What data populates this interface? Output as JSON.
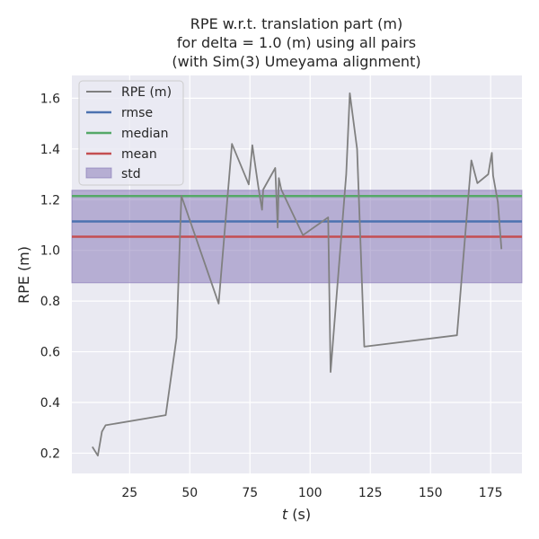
{
  "chart_data": {
    "type": "line",
    "title": [
      "RPE w.r.t. translation part (m)",
      "for delta = 1.0 (m) using all pairs",
      "(with Sim(3) Umeyama alignment)"
    ],
    "xlabel": "t (s)",
    "xlabel_var": "t",
    "xlabel_unit": " (s)",
    "ylabel": "RPE (m)",
    "xlim": [
      1,
      188
    ],
    "ylim": [
      0.12,
      1.69
    ],
    "xticks": [
      25,
      50,
      75,
      100,
      125,
      150,
      175
    ],
    "yticks": [
      0.2,
      0.4,
      0.6,
      0.8,
      1.0,
      1.2,
      1.4,
      1.6
    ],
    "ytick_labels": [
      "0.2",
      "0.4",
      "0.6",
      "0.8",
      "1.0",
      "1.2",
      "1.4",
      "1.6"
    ],
    "grid": true,
    "legend_position": "top-left",
    "series": [
      {
        "name": "RPE (m)",
        "color": "#808080",
        "x": [
          9.5,
          11.8,
          13.5,
          15,
          40,
          44.5,
          46.5,
          62,
          67.5,
          74.5,
          76,
          78.5,
          80,
          80.5,
          85.5,
          86.5,
          87,
          88,
          97,
          107.5,
          108.5,
          115,
          116.5,
          119.5,
          122.5,
          161,
          167,
          169.5,
          174,
          175.5,
          176,
          178,
          179.5
        ],
        "y": [
          0.225,
          0.19,
          0.285,
          0.31,
          0.35,
          0.655,
          1.215,
          0.79,
          1.42,
          1.26,
          1.415,
          1.25,
          1.16,
          1.24,
          1.325,
          1.09,
          1.285,
          1.24,
          1.06,
          1.13,
          0.52,
          1.3,
          1.62,
          1.4,
          0.62,
          0.665,
          1.355,
          1.265,
          1.3,
          1.385,
          1.295,
          1.19,
          1.005
        ]
      }
    ],
    "stats": [
      {
        "name": "rmse",
        "value": 1.114,
        "color": "#4c72b0"
      },
      {
        "name": "median",
        "value": 1.214,
        "color": "#55a868"
      },
      {
        "name": "mean",
        "value": 1.054,
        "color": "#c44e52"
      }
    ],
    "std_band": {
      "name": "std",
      "low": 0.872,
      "high": 1.237,
      "color": "#8172b3"
    },
    "legend": [
      "RPE (m)",
      "rmse",
      "median",
      "mean",
      "std"
    ]
  }
}
